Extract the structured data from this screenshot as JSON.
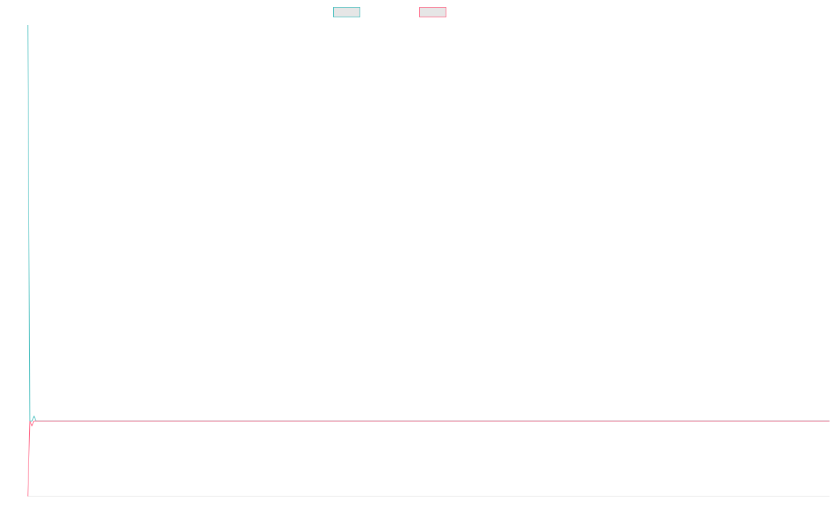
{
  "chart_data": {
    "type": "line",
    "title": "",
    "xlabel": "",
    "ylabel": "",
    "grid": false,
    "legend_placement": "top-center",
    "x": [
      0,
      1,
      2,
      3,
      4,
      200
    ],
    "ylim": [
      0,
      1
    ],
    "series": [
      {
        "color": "#4bc0c0",
        "values": [
          1.0,
          0.16,
          0.16,
          0.17,
          0.16,
          0.16
        ]
      },
      {
        "color": "#ff6384",
        "values": [
          0.0,
          0.16,
          0.15,
          0.16,
          0.16,
          0.16
        ]
      }
    ]
  }
}
